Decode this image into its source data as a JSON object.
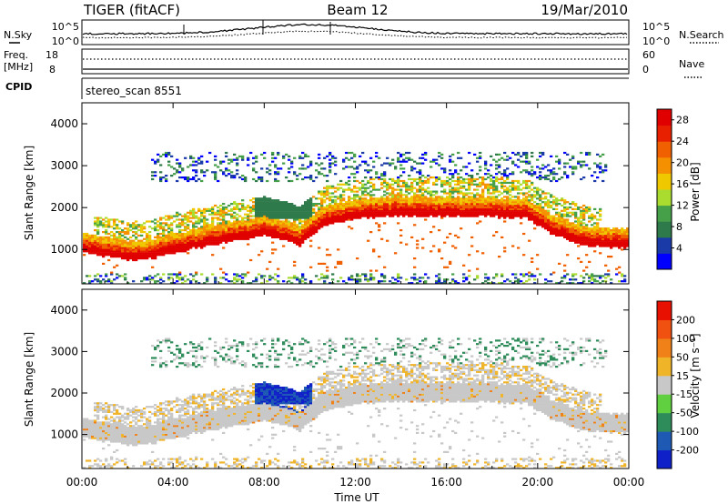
{
  "header": {
    "title": "TIGER (fitACF)",
    "beam": "Beam 12",
    "date": "19/Mar/2010"
  },
  "noise_panel": {
    "left_label": "N.Sky",
    "right_label": "N.Search",
    "y_ticks": [
      "10^5",
      "10^0"
    ]
  },
  "freq_panel": {
    "left_label_line1": "Freq.",
    "left_label_line2": "[MHz]",
    "left_ticks": [
      "18",
      "8"
    ],
    "right_label": "Nave",
    "right_ticks": [
      "60",
      "0"
    ]
  },
  "cpid_panel": {
    "label": "CPID",
    "program": "stereo_scan 8551"
  },
  "power_panel": {
    "ylabel": "Slant Range [km]",
    "y_ticks": [
      "4000",
      "3000",
      "2000",
      "1000"
    ],
    "colorbar_label": "Power [dB]",
    "colorbar_ticks": [
      "28",
      "24",
      "20",
      "16",
      "12",
      "8",
      "4"
    ],
    "colors": [
      "#0000ff",
      "#1a3aa8",
      "#2f7a4a",
      "#46a04a",
      "#aadc30",
      "#f0c800",
      "#f59000",
      "#f06000",
      "#e82000",
      "#e00000"
    ]
  },
  "velocity_panel": {
    "ylabel": "Slant Range [km]",
    "y_ticks": [
      "4000",
      "3000",
      "2000",
      "1000"
    ],
    "colorbar_label": "Velocity [m s⁻¹]",
    "colorbar_ticks": [
      "200",
      "100",
      "50",
      "15",
      "-15",
      "-50",
      "-100",
      "-200"
    ],
    "colors": [
      "#1020c8",
      "#1e5ab4",
      "#2e8c5a",
      "#60d040",
      "#c8c8c8",
      "#f0b428",
      "#f08018",
      "#f05010",
      "#e81000"
    ]
  },
  "x_axis": {
    "ticks": [
      "00:00",
      "04:00",
      "08:00",
      "12:00",
      "16:00",
      "20:00",
      "00:00"
    ],
    "label": "Time UT"
  },
  "chart_data": {
    "type": "heatmap",
    "title": "TIGER (fitACF)",
    "xlabel": "Time UT",
    "ylabel": "Slant Range [km]",
    "xlim": [
      0,
      24
    ],
    "ylim": [
      180,
      4500
    ],
    "power_range_db": [
      0,
      30
    ],
    "velocity_range": [
      -250,
      250
    ],
    "ionospheric_band": {
      "hours": [
        0,
        2,
        3,
        5,
        7,
        8,
        9.5,
        10.5,
        12,
        14,
        16,
        18,
        19.5,
        20.5,
        22,
        24
      ],
      "center_km": [
        1150,
        950,
        1000,
        1250,
        1450,
        1550,
        1300,
        1750,
        1950,
        2020,
        2000,
        2000,
        1950,
        1600,
        1300,
        1250
      ]
    }
  }
}
